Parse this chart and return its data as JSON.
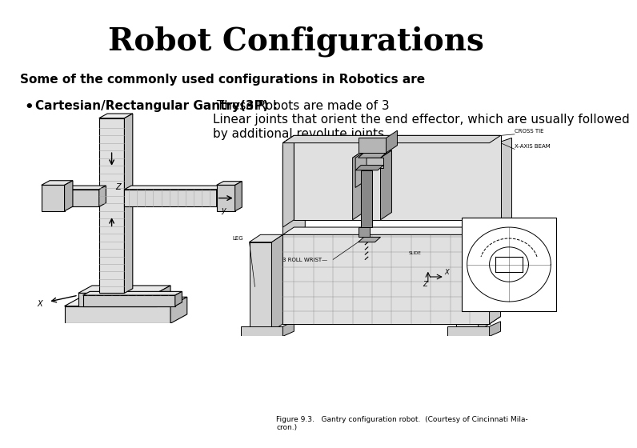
{
  "title": "Robot Configurations",
  "subtitle": "Some of the commonly used configurations in Robotics are",
  "bullet_bold": "Cartesian/Rectangular Gantry(3P) :",
  "bullet_normal": " These Robots are made of 3\nLinear joints that orient the end effector, which are usually followed\nby additional revolute joints.",
  "fig_caption": "Figure 9.3.   Gantry configuration robot.  (Courtesy of Cincinnati Mila-\ncron.)",
  "background_color": "#ffffff",
  "title_fontsize": 28,
  "subtitle_fontsize": 11,
  "bullet_fontsize": 11,
  "text_color": "#000000"
}
